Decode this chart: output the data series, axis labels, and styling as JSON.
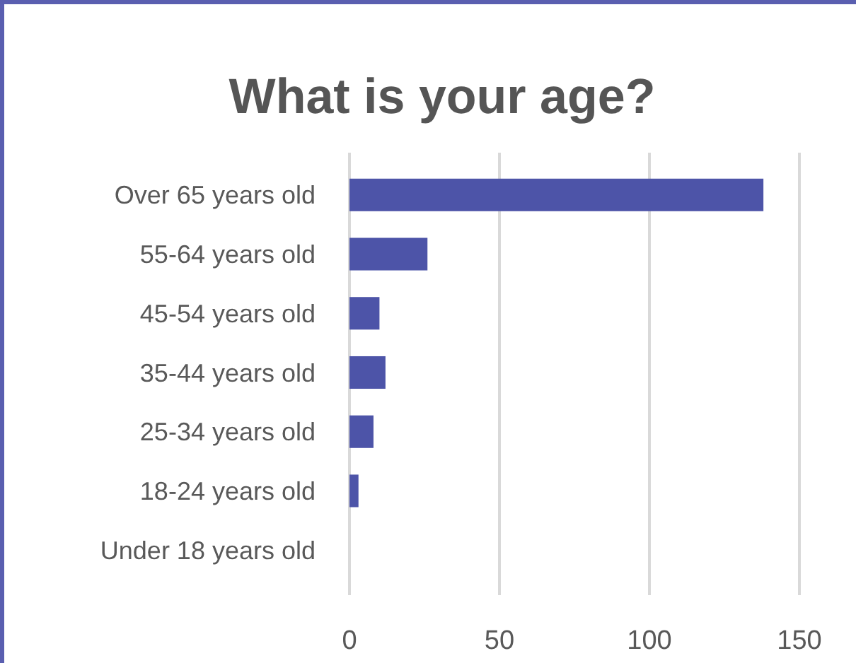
{
  "chart_data": {
    "type": "bar",
    "orientation": "horizontal",
    "title": "What is your age?",
    "categories": [
      "Over 65 years old",
      "55-64 years old",
      "45-54 years old",
      "35-44 years old",
      "25-34 years old",
      "18-24 years old",
      "Under 18 years old"
    ],
    "values": [
      138,
      26,
      10,
      12,
      8,
      3,
      0
    ],
    "color": "#4d54a8",
    "xlim": [
      0,
      150
    ],
    "xticks": [
      0,
      50,
      100,
      150
    ],
    "grid": "x"
  }
}
